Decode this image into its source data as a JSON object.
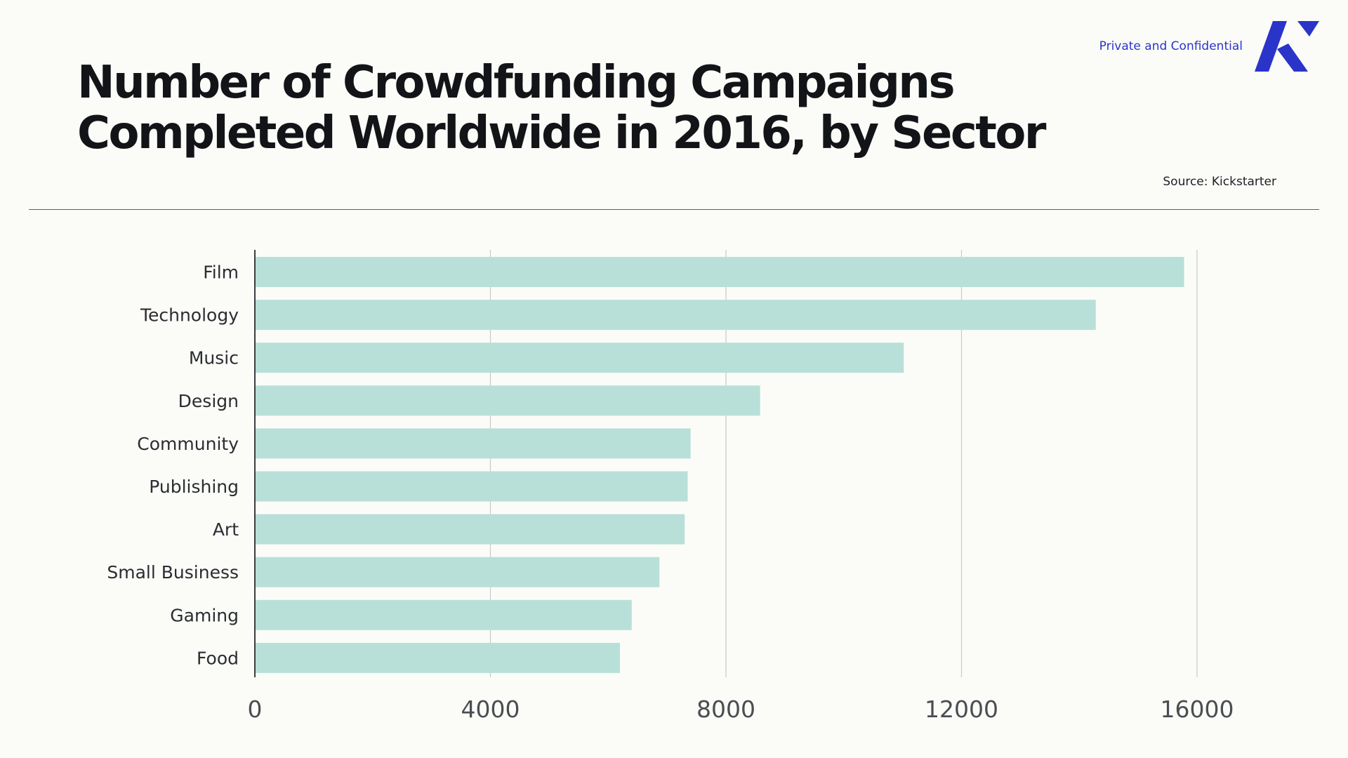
{
  "header": {
    "title_line1": "Number of Crowdfunding Campaigns",
    "title_line2": "Completed Worldwide in 2016, by Sector",
    "confidential": "Private and Confidential",
    "source": "Source: Kickstarter"
  },
  "colors": {
    "bar": "#b8e0d8",
    "accent": "#2b34c9",
    "grid": "#c9cbc8",
    "axis": "#3a3d40"
  },
  "chart_data": {
    "type": "bar",
    "orientation": "horizontal",
    "title": "Number of Crowdfunding Campaigns Completed Worldwide in 2016, by Sector",
    "xlabel": "",
    "ylabel": "",
    "categories": [
      "Film",
      "Technology",
      "Music",
      "Design",
      "Community",
      "Publishing",
      "Art",
      "Small Business",
      "Gaming",
      "Food"
    ],
    "values": [
      15780,
      14280,
      11020,
      8580,
      7400,
      7350,
      7300,
      6870,
      6400,
      6200
    ],
    "xlim": [
      0,
      16000
    ],
    "xticks": [
      0,
      4000,
      8000,
      12000,
      16000
    ],
    "grid": true,
    "legend": "none"
  }
}
